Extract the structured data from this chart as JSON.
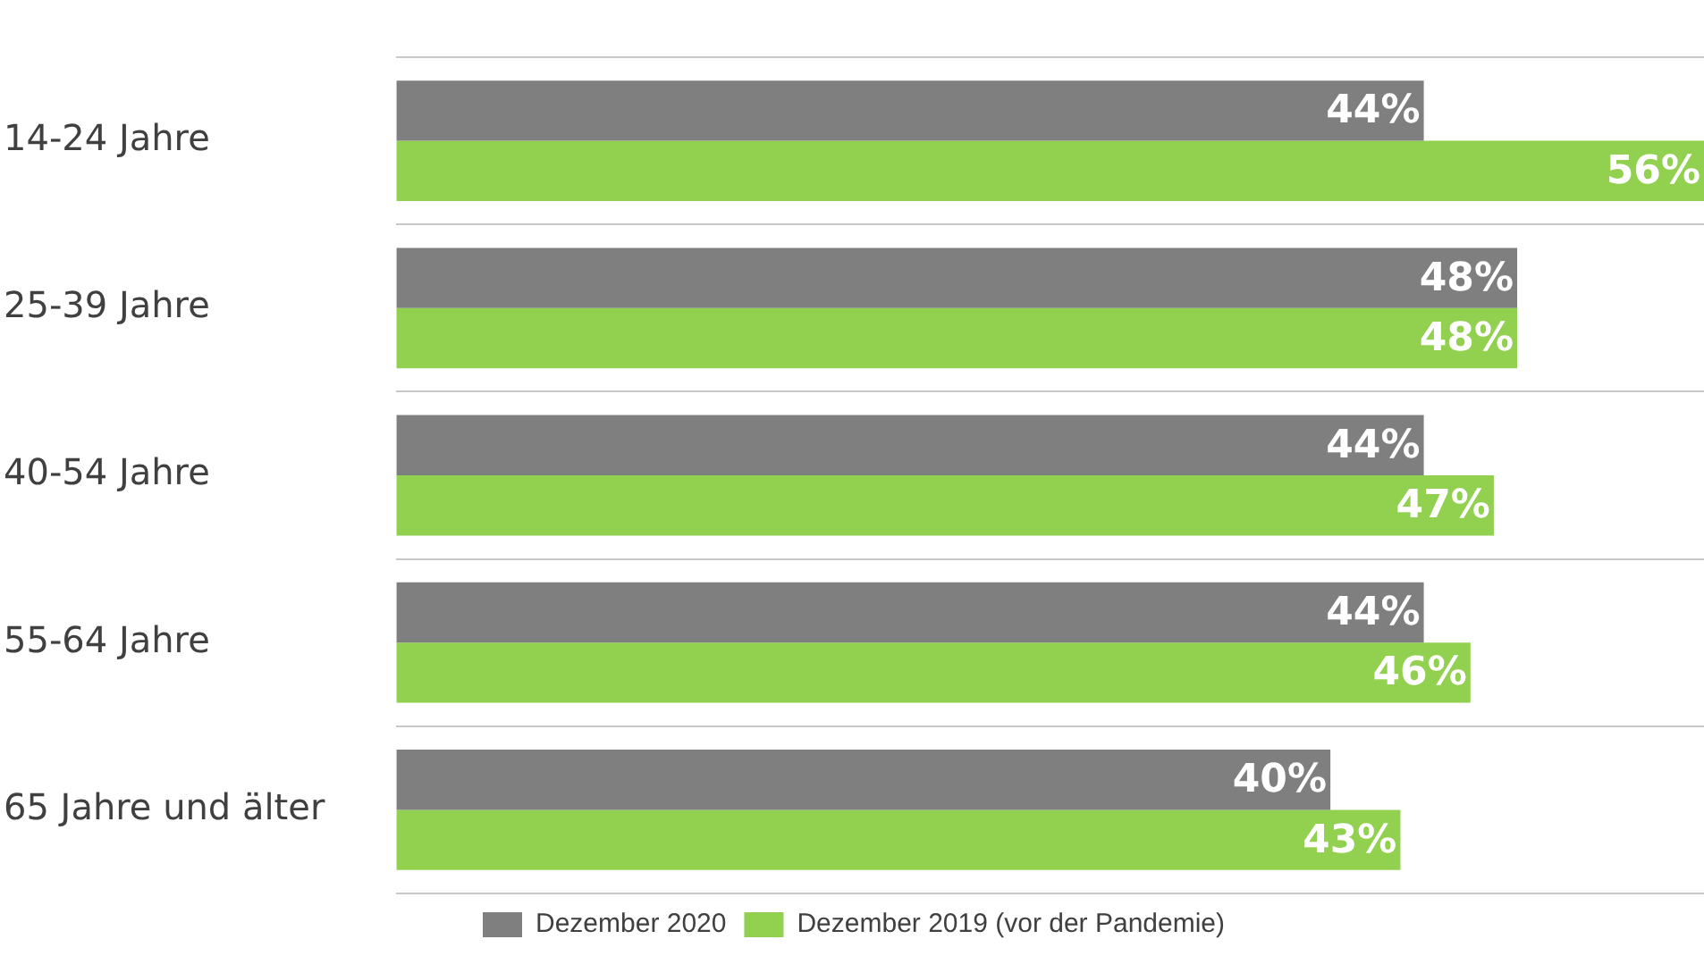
{
  "chart_data": {
    "type": "bar",
    "orientation": "horizontal",
    "categories": [
      "14-24 Jahre",
      "25-39 Jahre",
      "40-54 Jahre",
      "55-64 Jahre",
      "65 Jahre und älter"
    ],
    "series": [
      {
        "name": "Dezember 2020",
        "color": "#7f7f7f",
        "values": [
          44,
          48,
          44,
          44,
          40
        ],
        "value_labels": [
          "44%",
          "48%",
          "44%",
          "44%",
          "40%"
        ]
      },
      {
        "name": "Dezember 2019 (vor der Pandemie)",
        "color": "#92d050",
        "values": [
          56,
          48,
          47,
          46,
          43
        ],
        "value_labels": [
          "56%",
          "48%",
          "47%",
          "46%",
          "43%"
        ]
      }
    ],
    "tick_labels": "y",
    "grid": "y",
    "legend": "bottom"
  }
}
